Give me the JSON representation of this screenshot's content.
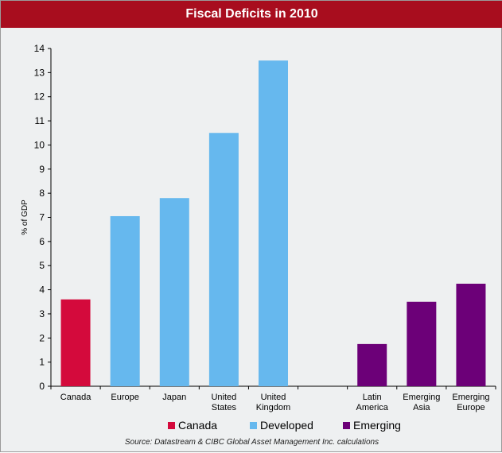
{
  "chart_data": {
    "type": "bar",
    "title": "Fiscal Deficits in 2010",
    "ylabel": "% of GDP",
    "xlabel": "",
    "ylim": [
      0,
      14
    ],
    "yticks": [
      0,
      1,
      2,
      3,
      4,
      5,
      6,
      7,
      8,
      9,
      10,
      11,
      12,
      13,
      14
    ],
    "categories": [
      {
        "label": [
          "Canada"
        ],
        "value": 3.6,
        "group": "Canada"
      },
      {
        "label": [
          "Europe"
        ],
        "value": 7.05,
        "group": "Developed"
      },
      {
        "label": [
          "Japan"
        ],
        "value": 7.8,
        "group": "Developed"
      },
      {
        "label": [
          "United",
          "States"
        ],
        "value": 10.5,
        "group": "Developed"
      },
      {
        "label": [
          "United",
          "Kingdom"
        ],
        "value": 13.5,
        "group": "Developed"
      },
      {
        "label": [
          ""
        ],
        "value": null,
        "group": ""
      },
      {
        "label": [
          "Latin",
          "America"
        ],
        "value": 1.75,
        "group": "Emerging"
      },
      {
        "label": [
          "Emerging",
          "Asia"
        ],
        "value": 3.5,
        "group": "Emerging"
      },
      {
        "label": [
          "Emerging",
          "Europe"
        ],
        "value": 4.25,
        "group": "Emerging"
      }
    ],
    "legend": [
      {
        "name": "Canada",
        "color": "#d40a3c"
      },
      {
        "name": "Developed",
        "color": "#66b8ee"
      },
      {
        "name": "Emerging",
        "color": "#6c0078"
      }
    ],
    "legend_position": "bottom",
    "grid": false
  },
  "source": "Source: Datastream & CIBC Global Asset Management Inc. calculations"
}
